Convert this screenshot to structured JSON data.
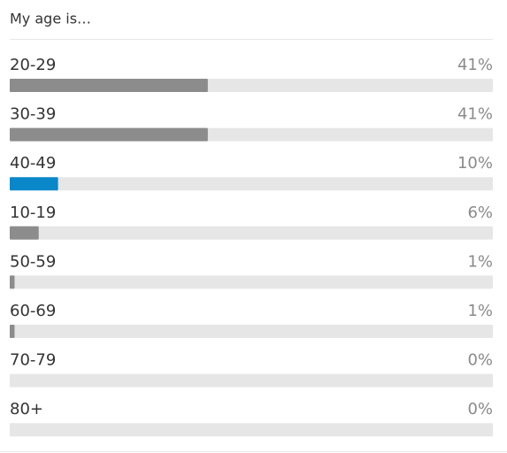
{
  "chart_data": {
    "type": "hbar",
    "title": "My age is…",
    "categories": [
      "20-29",
      "30-39",
      "40-49",
      "10-19",
      "50-59",
      "60-69",
      "70-79",
      "80+"
    ],
    "values": [
      41,
      41,
      10,
      6,
      1,
      1,
      0,
      0
    ],
    "value_labels": [
      "41%",
      "41%",
      "10%",
      "6%",
      "1%",
      "1%",
      "0%",
      "0%"
    ],
    "colors": [
      "#8c8c8c",
      "#8c8c8c",
      "#0a87c9",
      "#8c8c8c",
      "#8c8c8c",
      "#8c8c8c",
      "#8c8c8c",
      "#8c8c8c"
    ],
    "xlim": [
      0,
      100
    ]
  }
}
